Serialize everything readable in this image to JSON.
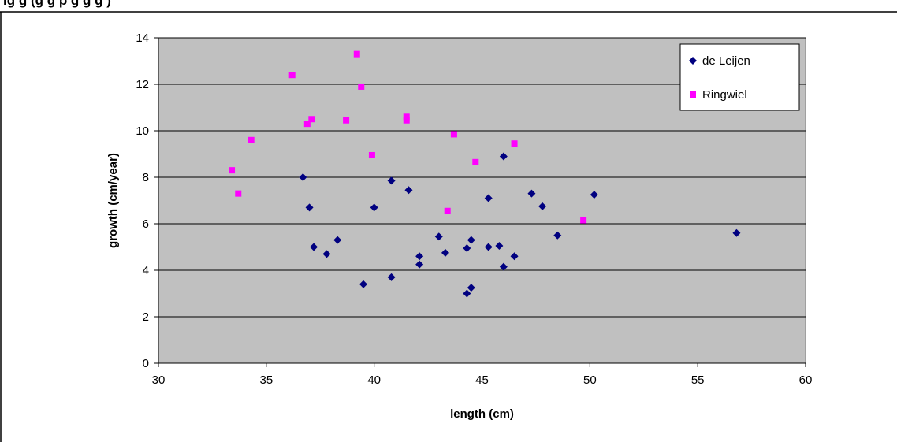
{
  "chart_data": {
    "type": "scatter",
    "caption": "ig                                                             g    (g    g   p                   g     g  g   )",
    "xlabel": "length (cm)",
    "ylabel": "growth (cm/year)",
    "xlim": [
      30,
      60
    ],
    "ylim": [
      0,
      14
    ],
    "xticks": [
      30,
      35,
      40,
      45,
      50,
      55,
      60
    ],
    "yticks": [
      0,
      2,
      4,
      6,
      8,
      10,
      12,
      14
    ],
    "grid": "horizontal",
    "plot_background": "#c0c0c0",
    "legend_position": "top-right",
    "series": [
      {
        "name": "de Leijen",
        "marker": "diamond",
        "color": "#000080",
        "points": [
          [
            36.7,
            8.0
          ],
          [
            37.0,
            6.7
          ],
          [
            37.2,
            5.0
          ],
          [
            37.8,
            4.7
          ],
          [
            38.3,
            5.3
          ],
          [
            39.5,
            3.4
          ],
          [
            40.0,
            6.7
          ],
          [
            40.8,
            7.85
          ],
          [
            40.8,
            3.7
          ],
          [
            41.6,
            7.45
          ],
          [
            42.1,
            4.6
          ],
          [
            42.1,
            4.25
          ],
          [
            43.0,
            5.45
          ],
          [
            43.3,
            4.75
          ],
          [
            44.3,
            4.95
          ],
          [
            44.3,
            3.0
          ],
          [
            44.5,
            5.3
          ],
          [
            44.5,
            3.25
          ],
          [
            45.3,
            7.1
          ],
          [
            45.3,
            5.0
          ],
          [
            45.8,
            5.05
          ],
          [
            46.0,
            8.9
          ],
          [
            46.0,
            4.15
          ],
          [
            46.5,
            4.6
          ],
          [
            47.3,
            7.3
          ],
          [
            47.8,
            6.75
          ],
          [
            48.5,
            5.5
          ],
          [
            50.2,
            7.25
          ],
          [
            56.8,
            5.6
          ]
        ]
      },
      {
        "name": "Ringwiel",
        "marker": "square",
        "color": "#ff00ff",
        "points": [
          [
            33.4,
            8.3
          ],
          [
            33.7,
            7.3
          ],
          [
            34.3,
            9.6
          ],
          [
            36.2,
            12.4
          ],
          [
            36.9,
            10.3
          ],
          [
            37.1,
            10.5
          ],
          [
            38.7,
            10.45
          ],
          [
            39.2,
            13.3
          ],
          [
            39.4,
            11.9
          ],
          [
            39.9,
            8.95
          ],
          [
            41.5,
            10.6
          ],
          [
            41.5,
            10.45
          ],
          [
            43.4,
            6.55
          ],
          [
            43.7,
            9.85
          ],
          [
            44.7,
            8.65
          ],
          [
            46.5,
            9.45
          ],
          [
            49.7,
            6.15
          ]
        ]
      }
    ]
  }
}
